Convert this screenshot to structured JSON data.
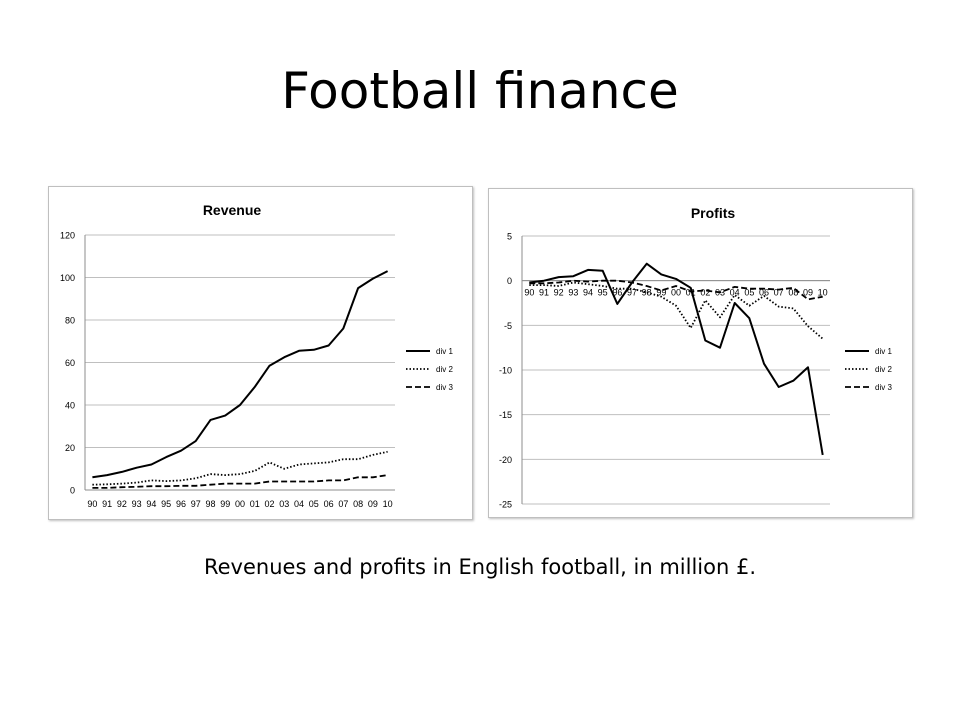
{
  "slide": {
    "title": "Football finance",
    "caption": "Revenues and profits in English football, in million £."
  },
  "chart_data": [
    {
      "type": "line",
      "title": "Revenue",
      "xlabel": "",
      "ylabel": "",
      "x": [
        "90",
        "91",
        "92",
        "93",
        "94",
        "95",
        "96",
        "97",
        "98",
        "99",
        "00",
        "01",
        "02",
        "03",
        "04",
        "05",
        "06",
        "07",
        "08",
        "09",
        "10"
      ],
      "ylim": [
        0,
        120
      ],
      "yticks": [
        0,
        20,
        40,
        60,
        80,
        100,
        120
      ],
      "grid": true,
      "legend": "right",
      "series": [
        {
          "name": "div 1",
          "dash": "solid",
          "values": [
            6,
            7,
            8.5,
            10.5,
            12,
            15.5,
            18.5,
            23,
            33,
            35,
            40,
            48.5,
            58.5,
            62.5,
            65.5,
            66,
            68,
            76,
            95,
            99.5,
            103
          ]
        },
        {
          "name": "div 2",
          "dash": "dotted",
          "values": [
            2.5,
            2.7,
            3,
            3.5,
            4.5,
            4.2,
            4.5,
            5.5,
            7.5,
            7,
            7.5,
            9,
            13,
            10,
            12,
            12.5,
            13,
            14.5,
            14.5,
            16.5,
            18
          ]
        },
        {
          "name": "div 3",
          "dash": "dashed",
          "values": [
            1,
            1,
            1.3,
            1.5,
            1.8,
            1.8,
            2,
            2,
            2.5,
            3,
            3,
            3,
            4,
            4,
            4,
            4,
            4.5,
            4.5,
            6,
            6,
            7
          ]
        }
      ]
    },
    {
      "type": "line",
      "title": "Profits",
      "xlabel": "",
      "ylabel": "",
      "x": [
        "90",
        "91",
        "92",
        "93",
        "94",
        "95",
        "96",
        "97",
        "98",
        "99",
        "00",
        "01",
        "02",
        "03",
        "04",
        "05",
        "06",
        "07",
        "08",
        "09",
        "10"
      ],
      "ylim": [
        -25,
        5
      ],
      "yticks": [
        -25,
        -20,
        -15,
        -10,
        -5,
        0,
        5
      ],
      "grid": true,
      "legend": "right",
      "series": [
        {
          "name": "div 1",
          "dash": "solid",
          "values": [
            -0.2,
            0,
            0.4,
            0.5,
            1.2,
            1.1,
            -2.6,
            -0.2,
            1.9,
            0.7,
            0.2,
            -0.8,
            -6.7,
            -7.5,
            -2.5,
            -4.2,
            -9.3,
            -11.9,
            -11.2,
            -9.7,
            -19.5
          ]
        },
        {
          "name": "div 2",
          "dash": "dotted",
          "values": [
            -0.5,
            -0.5,
            -0.6,
            -0.2,
            -0.4,
            -0.6,
            -0.9,
            -0.9,
            -1.3,
            -1.8,
            -2.8,
            -5.3,
            -2.2,
            -4.1,
            -1.6,
            -2.8,
            -1.7,
            -2.9,
            -3.1,
            -5.1,
            -6.5
          ]
        },
        {
          "name": "div 3",
          "dash": "dashed",
          "values": [
            -0.3,
            -0.3,
            -0.2,
            0,
            -0.1,
            0,
            0,
            -0.2,
            -0.6,
            -1.1,
            -0.6,
            -1.2,
            -1.1,
            -1.3,
            -0.7,
            -0.9,
            -0.9,
            -1,
            -0.8,
            -2.1,
            -1.8
          ]
        }
      ]
    }
  ]
}
